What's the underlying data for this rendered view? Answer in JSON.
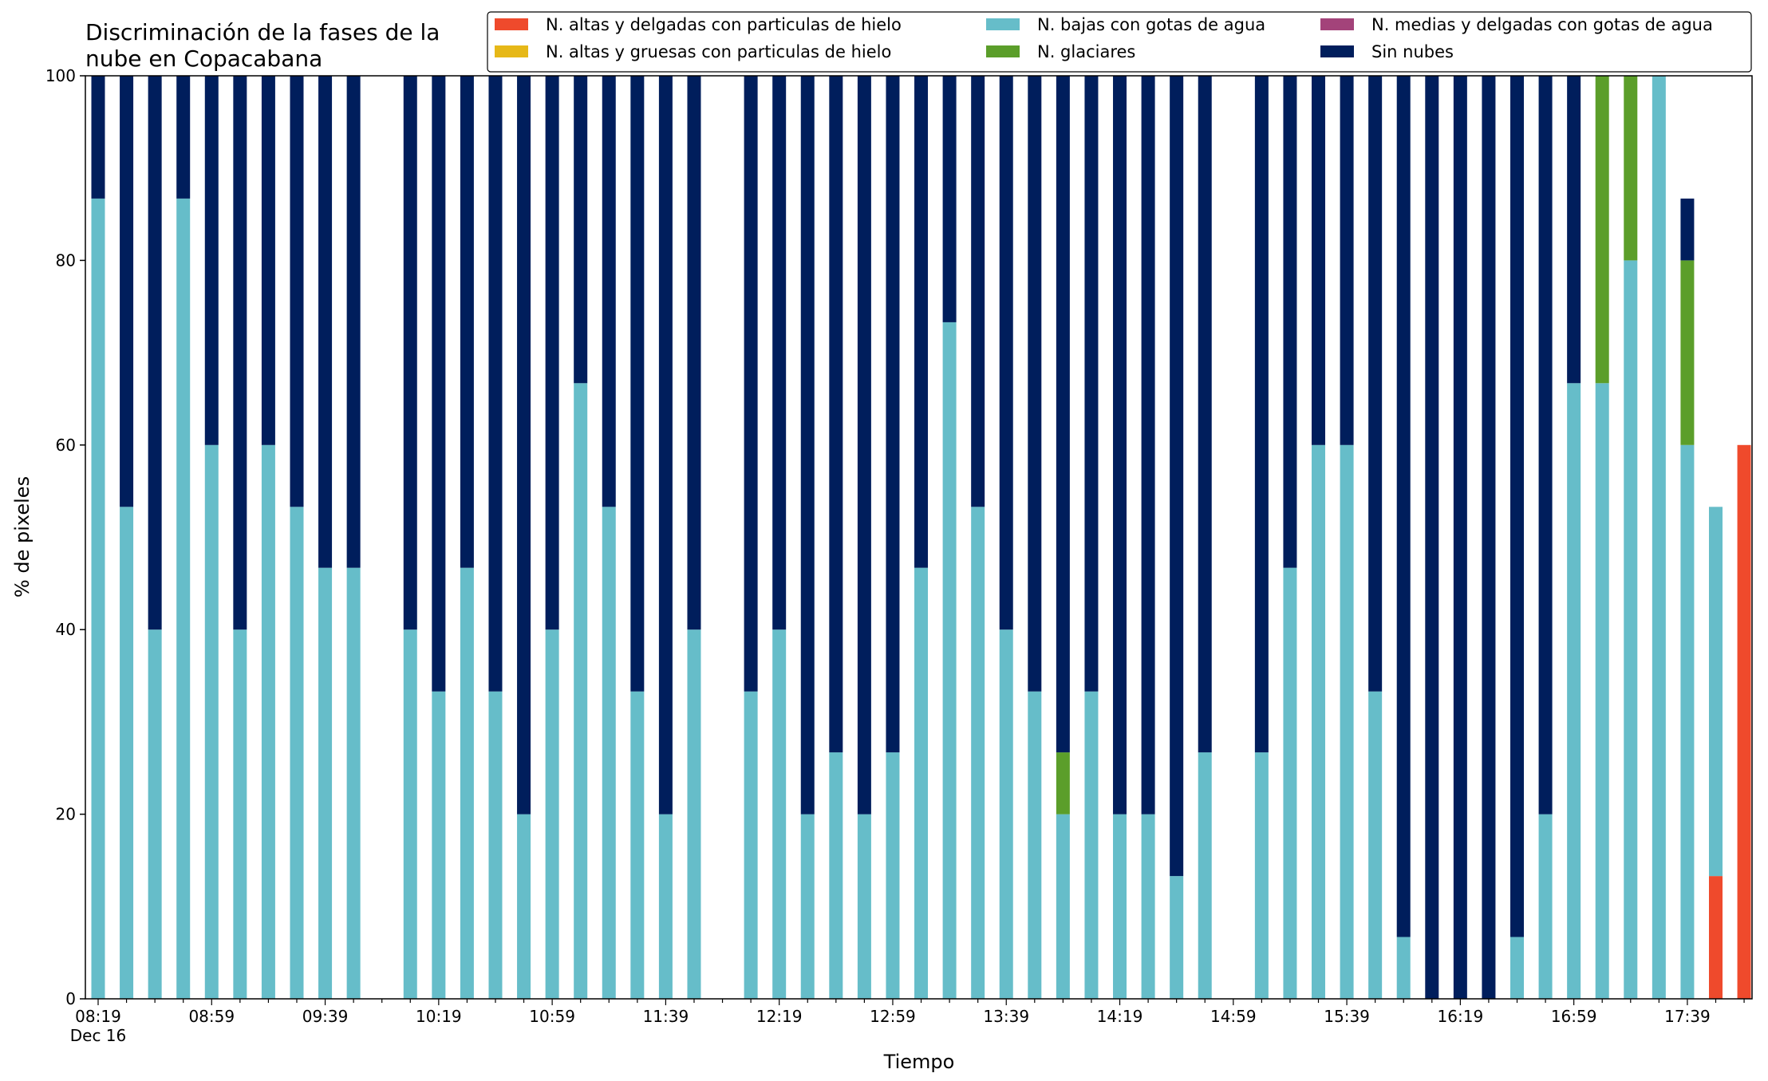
{
  "chart_data": {
    "type": "bar",
    "stacked": true,
    "title_line1": "Discriminación de la fases de la",
    "title_line2": "nube en Copacabana",
    "xlabel": "Tiempo",
    "ylabel": "% de pixeles",
    "ylim": [
      0,
      100
    ],
    "yticks": [
      "0",
      "20",
      "40",
      "60",
      "80",
      "100"
    ],
    "x_tick_labels": [
      "08:19",
      "08:59",
      "09:39",
      "10:19",
      "10:59",
      "11:39",
      "12:19",
      "12:59",
      "13:39",
      "14:19",
      "14:59",
      "15:39",
      "16:19",
      "16:59",
      "17:39"
    ],
    "x_date_label": "Dec 16",
    "legend_position": "top-right",
    "series": [
      {
        "name": "N. altas y delgadas con particulas de hielo",
        "color": "#ef4a2c",
        "values": [
          0,
          0,
          0,
          0,
          0,
          0,
          0,
          0,
          0,
          0,
          null,
          0,
          0,
          0,
          0,
          0,
          0,
          0,
          0,
          0,
          0,
          0,
          null,
          0,
          0,
          0,
          0,
          0,
          0,
          0,
          0,
          0,
          0,
          0,
          0,
          0,
          0,
          0,
          0,
          0,
          null,
          0,
          0,
          0,
          0,
          0,
          0,
          0,
          0,
          0,
          0,
          0,
          0,
          0,
          0,
          0,
          0,
          13.3,
          60
        ]
      },
      {
        "name": "N. altas y gruesas con particulas de hielo",
        "color": "#e6b818",
        "values": [
          0,
          0,
          0,
          0,
          0,
          0,
          0,
          0,
          0,
          0,
          null,
          0,
          0,
          0,
          0,
          0,
          0,
          0,
          0,
          0,
          0,
          0,
          null,
          0,
          0,
          0,
          0,
          0,
          0,
          0,
          0,
          0,
          0,
          0,
          0,
          0,
          0,
          0,
          0,
          0,
          null,
          0,
          0,
          0,
          0,
          0,
          0,
          0,
          0,
          0,
          0,
          0,
          0,
          0,
          0,
          0,
          0,
          0,
          0
        ]
      },
      {
        "name": "N. bajas con gotas de agua",
        "color": "#66bdc9",
        "values": [
          86.7,
          53.3,
          40,
          86.7,
          60,
          40,
          60,
          53.3,
          46.7,
          46.7,
          null,
          40,
          33.3,
          46.7,
          33.3,
          20,
          40,
          66.7,
          53.3,
          33.3,
          20,
          40,
          null,
          33.3,
          40,
          20,
          26.7,
          20,
          26.7,
          46.7,
          73.3,
          53.3,
          40,
          33.3,
          20,
          33.3,
          20,
          20,
          13.3,
          26.7,
          null,
          26.7,
          46.7,
          60,
          60,
          33.3,
          6.7,
          0,
          0,
          0,
          6.7,
          20,
          66.7,
          66.7,
          80,
          100,
          60,
          40
        ]
      },
      {
        "name": "N. glaciares",
        "color": "#5b9e2a",
        "values": [
          0,
          0,
          0,
          0,
          0,
          0,
          0,
          0,
          0,
          0,
          null,
          0,
          0,
          0,
          0,
          0,
          0,
          0,
          0,
          0,
          0,
          0,
          null,
          0,
          0,
          0,
          0,
          0,
          0,
          0,
          0,
          0,
          0,
          0,
          6.7,
          0,
          0,
          0,
          0,
          0,
          null,
          0,
          0,
          0,
          0,
          0,
          0,
          0,
          0,
          0,
          0,
          0,
          0,
          33.3,
          20,
          0,
          20,
          0
        ]
      },
      {
        "name": "N. medias y delgadas con gotas de agua",
        "color": "#a3437a",
        "values": [
          0,
          0,
          0,
          0,
          0,
          0,
          0,
          0,
          0,
          0,
          null,
          0,
          0,
          0,
          0,
          0,
          0,
          0,
          0,
          0,
          0,
          0,
          null,
          0,
          0,
          0,
          0,
          0,
          0,
          0,
          0,
          0,
          0,
          0,
          0,
          0,
          0,
          0,
          0,
          0,
          null,
          0,
          0,
          0,
          0,
          0,
          0,
          0,
          0,
          0,
          0,
          0,
          0,
          0,
          0,
          0,
          0,
          0,
          0
        ]
      },
      {
        "name": "Sin nubes",
        "color": "#001e5c",
        "values": [
          13.3,
          46.7,
          60,
          13.3,
          40,
          60,
          40,
          46.7,
          53.3,
          53.3,
          null,
          60,
          66.7,
          53.3,
          66.7,
          80,
          60,
          33.3,
          46.7,
          66.7,
          80,
          60,
          null,
          66.7,
          60,
          80,
          73.3,
          80,
          73.3,
          53.3,
          26.7,
          46.7,
          60,
          66.7,
          73.3,
          66.7,
          80,
          80,
          86.7,
          73.3,
          null,
          73.3,
          53.3,
          40,
          40,
          66.7,
          93.3,
          100,
          100,
          100,
          93.3,
          80,
          33.3,
          0,
          0,
          0,
          6.7,
          0
        ]
      }
    ]
  }
}
